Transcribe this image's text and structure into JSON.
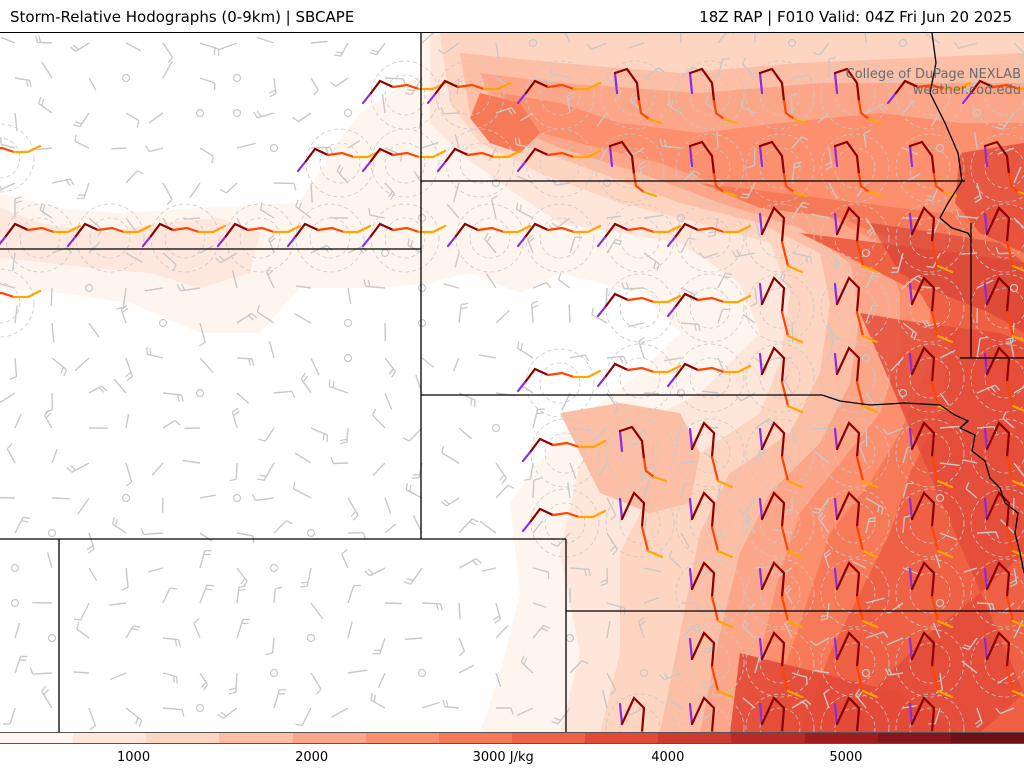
{
  "header": {
    "title": "Storm-Relative Hodographs (0-9km) | SBCAPE",
    "run_info": "18Z RAP | F010 Valid: 04Z Fri Jun 20 2025"
  },
  "credit": {
    "line1": "College of DuPage NEXLAB",
    "line2": "weather.cod.edu"
  },
  "colorbar": {
    "field": "SBCAPE",
    "units": "J/kg",
    "ticks": [
      {
        "value": 1000,
        "label": "1000"
      },
      {
        "value": 2000,
        "label": "2000"
      },
      {
        "value": 3000,
        "label": "3000 J/kg"
      },
      {
        "value": 4000,
        "label": "4000"
      },
      {
        "value": 5000,
        "label": "5000"
      }
    ],
    "range": [
      250,
      6000
    ],
    "colors": [
      "#fff5ef",
      "#fee6da",
      "#fdd5c1",
      "#fcbea5",
      "#fca689",
      "#fb8f6e",
      "#f77a58",
      "#ef6145",
      "#e24a37",
      "#cf3a2f",
      "#b92a26",
      "#a01c20",
      "#86141b",
      "#6b1016"
    ]
  },
  "hodograph_colors": {
    "0-1km": "#8a2be2",
    "1-3km": "#8b0000",
    "3-6km": "#ff4500",
    "6-9km": "#ffa500"
  },
  "style_colors": {
    "wind_barb": "#c8c8c8",
    "ring": "#c8c8c8",
    "boundary": "#000000"
  }
}
